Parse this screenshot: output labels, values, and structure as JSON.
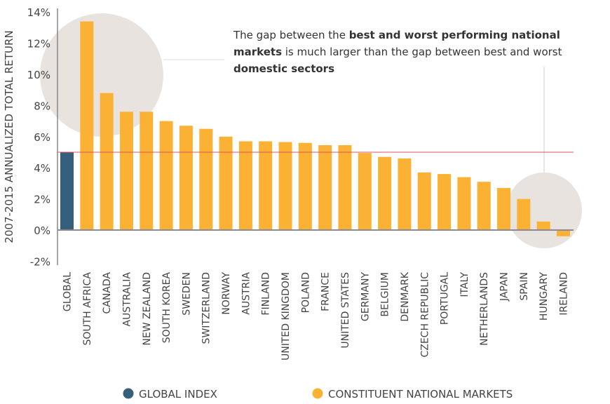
{
  "chart_data": {
    "type": "bar",
    "ylabel": "2007-2015 ANNUALIZED TOTAL RETURN",
    "ylim": [
      -2,
      14
    ],
    "yticks": [
      "-2%",
      "0%",
      "2%",
      "4%",
      "6%",
      "8%",
      "10%",
      "12%",
      "14%"
    ],
    "reference_line": 5.0,
    "categories": [
      "GLOBAL",
      "SOUTH AFRICA",
      "CANADA",
      "AUSTRALIA",
      "NEW ZEALAND",
      "SOUTH KOREA",
      "SWEDEN",
      "SWITZERLAND",
      "NORWAY",
      "AUSTRIA",
      "FINLAND",
      "UNITED KINGDOM",
      "POLAND",
      "FRANCE",
      "UNITED STATES",
      "GERMANY",
      "BELGIUM",
      "DENMARK",
      "CZECH REPUBLIC",
      "PORTUGAL",
      "ITALY",
      "NETHERLANDS",
      "JAPAN",
      "SPAIN",
      "HUNGARY",
      "IRELAND"
    ],
    "values": [
      5.0,
      13.4,
      8.8,
      7.6,
      7.6,
      7.0,
      6.7,
      6.5,
      6.0,
      5.7,
      5.7,
      5.65,
      5.6,
      5.45,
      5.45,
      4.95,
      4.7,
      4.6,
      3.7,
      3.6,
      3.4,
      3.1,
      2.7,
      2.0,
      0.55,
      -0.4
    ],
    "groups": [
      "global",
      "national",
      "national",
      "national",
      "national",
      "national",
      "national",
      "national",
      "national",
      "national",
      "national",
      "national",
      "national",
      "national",
      "national",
      "national",
      "national",
      "national",
      "national",
      "national",
      "national",
      "national",
      "national",
      "national",
      "national",
      "national"
    ],
    "legend": [
      {
        "name": "GLOBAL INDEX",
        "color": "#365f7b"
      },
      {
        "name": "CONSTITUENT NATIONAL MARKETS",
        "color": "#fbb234"
      }
    ],
    "legend_position": "bottom",
    "colors": {
      "global": "#365f7b",
      "national": "#fbb234",
      "reference": "#d9545b",
      "highlight": "#e8e3df"
    }
  },
  "annotation": {
    "p1": "The gap between the ",
    "b1": "best and worst performing national markets",
    "p2": " is much larger than the gap between best and worst ",
    "b2": "domestic sectors"
  }
}
